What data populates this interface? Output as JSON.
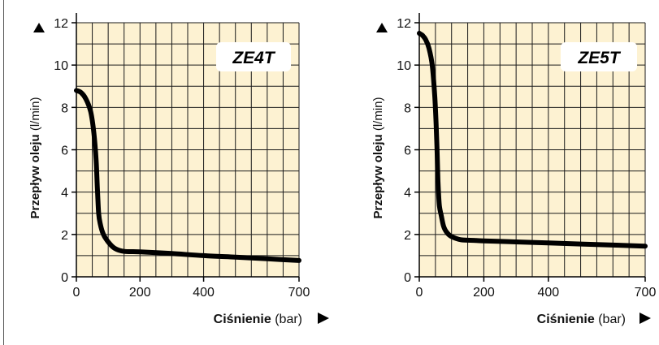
{
  "colors": {
    "plot_bg": "#fdf2d2",
    "grid": "#1a1a1a",
    "curve": "#000000",
    "badge_bg": "#ffffff"
  },
  "chart_data": [
    {
      "type": "line",
      "title": "ZE4T",
      "xlabel": "Ciśnienie",
      "xunit": "(bar)",
      "ylabel": "Przepływ oleju",
      "yunit": "(l/min)",
      "xlim": [
        0,
        700
      ],
      "ylim": [
        0,
        12
      ],
      "xticks": [
        0,
        200,
        400,
        700
      ],
      "yticks": [
        0,
        2,
        4,
        6,
        8,
        10,
        12
      ],
      "grid": true,
      "series": [
        {
          "x": [
            0,
            15,
            30,
            45,
            55,
            62,
            66,
            70,
            75,
            85,
            100,
            120,
            150,
            200,
            300,
            400,
            500,
            600,
            700
          ],
          "y": [
            8.8,
            8.7,
            8.4,
            7.8,
            6.8,
            5.5,
            4.2,
            3.0,
            2.5,
            2.0,
            1.65,
            1.35,
            1.2,
            1.18,
            1.1,
            1.0,
            0.93,
            0.85,
            0.77
          ]
        }
      ]
    },
    {
      "type": "line",
      "title": "ZE5T",
      "xlabel": "Ciśnienie",
      "xunit": "(bar)",
      "ylabel": "Przepływ oleju",
      "yunit": "(l/min)",
      "xlim": [
        0,
        700
      ],
      "ylim": [
        0,
        12
      ],
      "xticks": [
        0,
        200,
        400,
        700
      ],
      "yticks": [
        0,
        2,
        4,
        6,
        8,
        10,
        12
      ],
      "grid": true,
      "series": [
        {
          "x": [
            0,
            10,
            20,
            30,
            40,
            48,
            54,
            58,
            62,
            68,
            75,
            85,
            100,
            130,
            170,
            200,
            300,
            400,
            500,
            600,
            700
          ],
          "y": [
            11.5,
            11.4,
            11.2,
            10.8,
            10.0,
            8.5,
            6.5,
            4.5,
            3.4,
            2.9,
            2.4,
            2.1,
            1.9,
            1.75,
            1.72,
            1.7,
            1.65,
            1.6,
            1.55,
            1.5,
            1.45
          ]
        }
      ]
    }
  ]
}
